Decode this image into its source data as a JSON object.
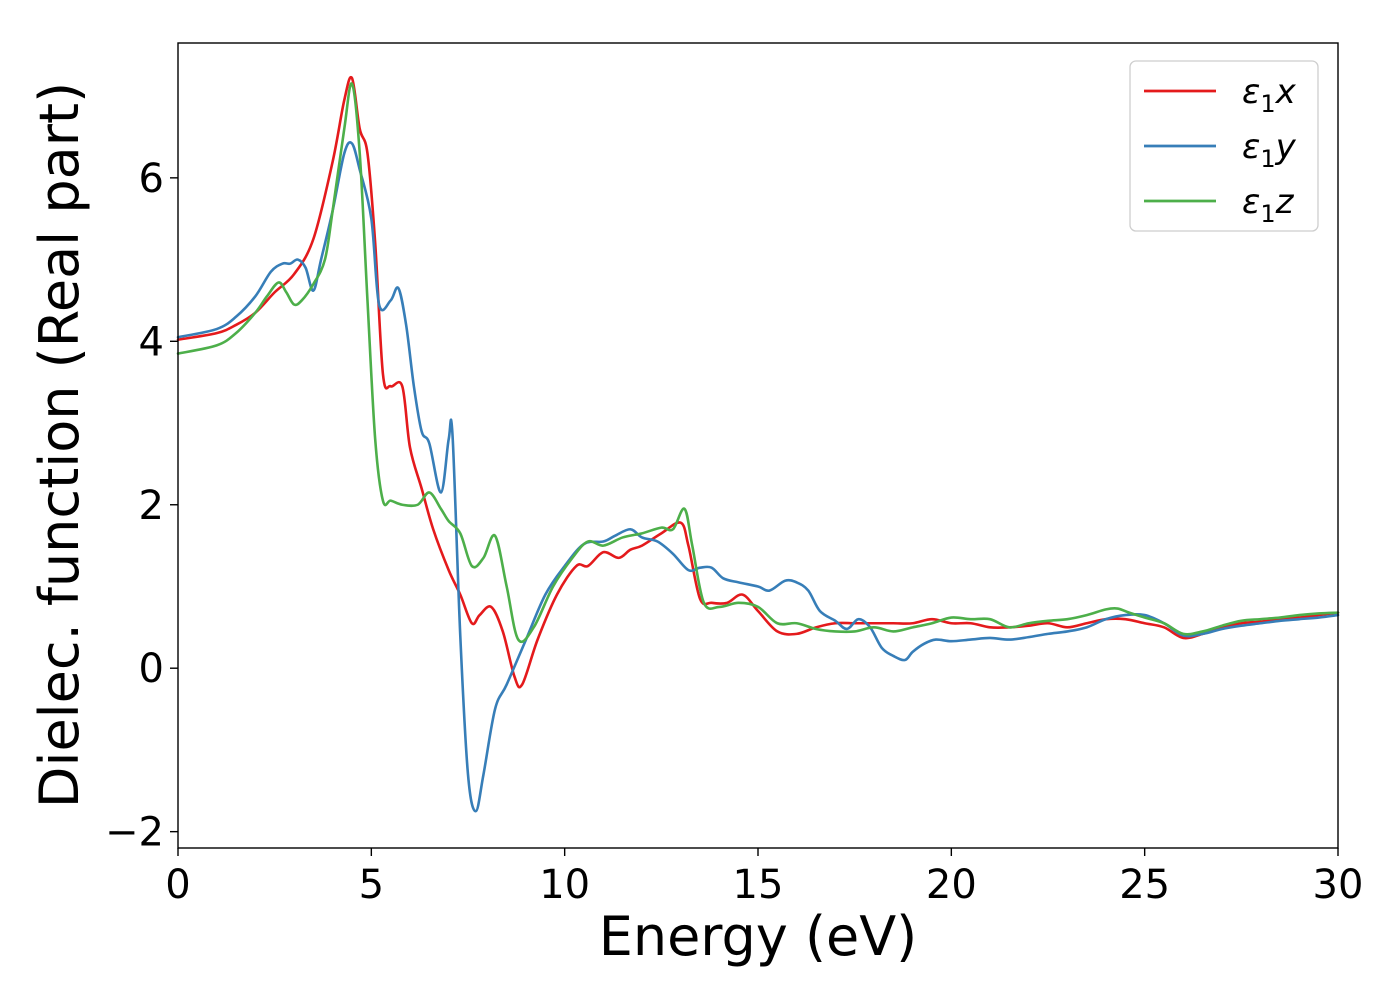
{
  "chart_data": {
    "type": "line",
    "title": "",
    "xlabel": "Energy (eV)",
    "ylabel": "Dielec. function (Real part)",
    "xlim": [
      0,
      30
    ],
    "ylim": [
      -2.2,
      7.65
    ],
    "xticks": [
      0,
      5,
      10,
      15,
      20,
      25,
      30
    ],
    "xtick_labels": [
      "0",
      "5",
      "10",
      "15",
      "20",
      "25",
      "30"
    ],
    "yticks": [
      -2,
      0,
      2,
      4,
      6
    ],
    "ytick_labels": [
      "−2",
      "0",
      "2",
      "4",
      "6"
    ],
    "grid": false,
    "legend_position": "top-right",
    "series": [
      {
        "name": "ε₁x",
        "name_base": "ε",
        "name_sub": "1",
        "name_suffix": "x",
        "color": "#e41a1c",
        "x": [
          0,
          1,
          1.5,
          2,
          2.5,
          3,
          3.5,
          4,
          4.3,
          4.5,
          4.7,
          4.9,
          5.1,
          5.3,
          5.5,
          5.8,
          6.0,
          6.3,
          6.6,
          7.0,
          7.3,
          7.6,
          7.8,
          8.1,
          8.4,
          8.7,
          8.9,
          9.3,
          9.8,
          10.3,
          10.6,
          11.0,
          11.4,
          11.7,
          12.0,
          12.5,
          13.0,
          13.2,
          13.5,
          13.8,
          14.2,
          14.6,
          15.0,
          15.5,
          16.0,
          16.5,
          17.0,
          17.5,
          18.0,
          18.5,
          19.0,
          19.5,
          20.0,
          20.5,
          21.0,
          21.5,
          22.0,
          22.5,
          23.0,
          23.5,
          24.0,
          24.5,
          25.0,
          25.5,
          26.0,
          26.5,
          27.0,
          27.5,
          28.0,
          28.5,
          29.0,
          29.5,
          30
        ],
        "y": [
          4.02,
          4.1,
          4.2,
          4.35,
          4.6,
          4.82,
          5.25,
          6.2,
          6.95,
          7.22,
          6.6,
          6.3,
          5.2,
          3.6,
          3.45,
          3.45,
          2.7,
          2.2,
          1.7,
          1.2,
          0.9,
          0.55,
          0.65,
          0.75,
          0.45,
          -0.1,
          -0.2,
          0.35,
          0.9,
          1.25,
          1.25,
          1.42,
          1.35,
          1.45,
          1.5,
          1.65,
          1.78,
          1.5,
          0.85,
          0.8,
          0.8,
          0.9,
          0.7,
          0.45,
          0.42,
          0.5,
          0.55,
          0.55,
          0.55,
          0.55,
          0.55,
          0.6,
          0.55,
          0.55,
          0.5,
          0.5,
          0.52,
          0.55,
          0.5,
          0.55,
          0.6,
          0.6,
          0.55,
          0.5,
          0.37,
          0.42,
          0.5,
          0.55,
          0.57,
          0.6,
          0.62,
          0.65,
          0.68
        ]
      },
      {
        "name": "ε₁y",
        "name_base": "ε",
        "name_sub": "1",
        "name_suffix": "y",
        "color": "#377eb8",
        "x": [
          0,
          1,
          1.5,
          2,
          2.4,
          2.7,
          2.9,
          3.1,
          3.3,
          3.5,
          3.7,
          4.0,
          4.3,
          4.5,
          4.7,
          5.0,
          5.2,
          5.5,
          5.7,
          5.9,
          6.1,
          6.3,
          6.5,
          6.8,
          7.0,
          7.1,
          7.3,
          7.5,
          7.7,
          7.9,
          8.2,
          8.5,
          9.0,
          9.5,
          10.0,
          10.5,
          11.0,
          11.3,
          11.7,
          12.0,
          12.4,
          12.8,
          13.2,
          13.5,
          13.8,
          14.1,
          14.5,
          15.0,
          15.3,
          15.7,
          16.0,
          16.3,
          16.6,
          17.0,
          17.3,
          17.6,
          17.9,
          18.2,
          18.5,
          18.8,
          19.0,
          19.3,
          19.6,
          20.0,
          20.5,
          21.0,
          21.5,
          22.0,
          22.5,
          23.0,
          23.5,
          24.0,
          24.5,
          25.0,
          25.5,
          26.0,
          26.5,
          27.0,
          27.5,
          28.0,
          28.5,
          29.0,
          29.5,
          30
        ],
        "y": [
          4.05,
          4.15,
          4.3,
          4.55,
          4.85,
          4.95,
          4.95,
          5.0,
          4.9,
          4.62,
          5.0,
          5.6,
          6.3,
          6.42,
          6.1,
          5.5,
          4.45,
          4.5,
          4.65,
          4.2,
          3.45,
          2.9,
          2.75,
          2.15,
          2.8,
          2.85,
          0.4,
          -1.3,
          -1.75,
          -1.3,
          -0.5,
          -0.2,
          0.35,
          0.9,
          1.25,
          1.52,
          1.55,
          1.62,
          1.7,
          1.6,
          1.55,
          1.4,
          1.2,
          1.23,
          1.23,
          1.1,
          1.05,
          1.0,
          0.95,
          1.07,
          1.05,
          0.95,
          0.7,
          0.58,
          0.48,
          0.6,
          0.5,
          0.25,
          0.15,
          0.1,
          0.2,
          0.3,
          0.35,
          0.33,
          0.35,
          0.37,
          0.35,
          0.38,
          0.42,
          0.45,
          0.5,
          0.6,
          0.65,
          0.65,
          0.55,
          0.4,
          0.42,
          0.48,
          0.52,
          0.55,
          0.58,
          0.6,
          0.62,
          0.65
        ]
      },
      {
        "name": "ε₁z",
        "name_base": "ε",
        "name_sub": "1",
        "name_suffix": "z",
        "color": "#4daf4a",
        "x": [
          0,
          1,
          1.5,
          2,
          2.3,
          2.6,
          2.8,
          3.0,
          3.2,
          3.5,
          3.8,
          4.0,
          4.3,
          4.5,
          4.7,
          4.9,
          5.1,
          5.3,
          5.5,
          5.8,
          6.2,
          6.5,
          6.8,
          7.0,
          7.3,
          7.6,
          7.9,
          8.2,
          8.5,
          8.8,
          9.2,
          9.7,
          10.2,
          10.6,
          11.0,
          11.5,
          12.0,
          12.5,
          12.8,
          13.1,
          13.3,
          13.6,
          14.0,
          14.5,
          15.0,
          15.5,
          16.0,
          16.5,
          17.0,
          17.5,
          18.0,
          18.5,
          19.0,
          19.5,
          20.0,
          20.5,
          21.0,
          21.5,
          22.0,
          22.5,
          23.0,
          23.5,
          24.0,
          24.3,
          24.6,
          25.0,
          25.5,
          26.0,
          26.5,
          27.0,
          27.5,
          28.0,
          28.5,
          29.0,
          29.5,
          30
        ],
        "y": [
          3.85,
          3.95,
          4.1,
          4.35,
          4.55,
          4.72,
          4.6,
          4.45,
          4.5,
          4.7,
          5.0,
          5.6,
          6.6,
          7.15,
          6.3,
          4.5,
          2.8,
          2.05,
          2.05,
          2.0,
          2.0,
          2.15,
          1.95,
          1.8,
          1.65,
          1.25,
          1.35,
          1.62,
          1.0,
          0.35,
          0.5,
          1.0,
          1.35,
          1.55,
          1.5,
          1.6,
          1.65,
          1.72,
          1.7,
          1.95,
          1.5,
          0.8,
          0.75,
          0.8,
          0.75,
          0.55,
          0.55,
          0.48,
          0.45,
          0.45,
          0.5,
          0.45,
          0.5,
          0.55,
          0.62,
          0.6,
          0.6,
          0.5,
          0.55,
          0.58,
          0.6,
          0.65,
          0.72,
          0.73,
          0.68,
          0.62,
          0.55,
          0.42,
          0.45,
          0.52,
          0.58,
          0.6,
          0.62,
          0.65,
          0.67,
          0.68
        ]
      }
    ]
  }
}
